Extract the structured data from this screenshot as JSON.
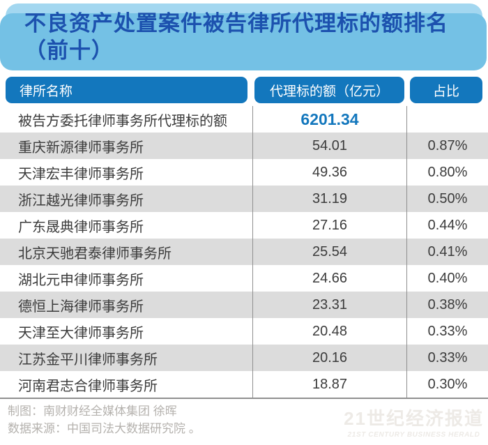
{
  "title": {
    "full": "不良资产处置案件被告律所代理标的额排名（前十）",
    "line1": "不良资产处置案件被告律所代理标的额排名",
    "line2": "（前十）"
  },
  "chart_data": {
    "type": "table",
    "title": "不良资产处置案件被告律所代理标的额排名（前十）",
    "columns": [
      "律所名称",
      "代理标的额（亿元）",
      "占比"
    ],
    "rows": [
      {
        "name": "被告方委托律师事务所代理标的额",
        "value": "6201.34",
        "share": "",
        "emphasis": true
      },
      {
        "name": "重庆新源律师事务所",
        "value": "54.01",
        "share": "0.87%"
      },
      {
        "name": "天津宏丰律师事务所",
        "value": "49.36",
        "share": "0.80%"
      },
      {
        "name": "浙江越光律师事务所",
        "value": "31.19",
        "share": "0.50%"
      },
      {
        "name": "广东晟典律师事务所",
        "value": "27.16",
        "share": "0.44%"
      },
      {
        "name": "北京天驰君泰律师事务所",
        "value": "25.54",
        "share": "0.41%"
      },
      {
        "name": "湖北元申律师事务所",
        "value": "24.66",
        "share": "0.40%"
      },
      {
        "name": "德恒上海律师事务所",
        "value": "23.31",
        "share": "0.38%"
      },
      {
        "name": "天津至大律师事务所",
        "value": "20.48",
        "share": "0.33%"
      },
      {
        "name": "江苏金平川律师事务所",
        "value": "20.16",
        "share": "0.33%"
      },
      {
        "name": "河南君志合律师事务所",
        "value": "18.87",
        "share": "0.30%"
      }
    ]
  },
  "footer": {
    "credit": "制图：南财财经全媒体集团 徐晖",
    "source": "数据来源：中国司法大数据研究院 。"
  },
  "logo": {
    "cn": "21世纪经济报道",
    "en": "21ST CENTURY BUSINESS HERALD"
  },
  "colors": {
    "banner_bg": "#a3d7f0",
    "banner_layer": "#74c1e5",
    "title_text": "#1c51ae",
    "header_pill": "#1377bd",
    "row_stripe": "#dcdcdc",
    "emphasis_value": "#1377bd",
    "footer_text": "#b5b2ae"
  }
}
